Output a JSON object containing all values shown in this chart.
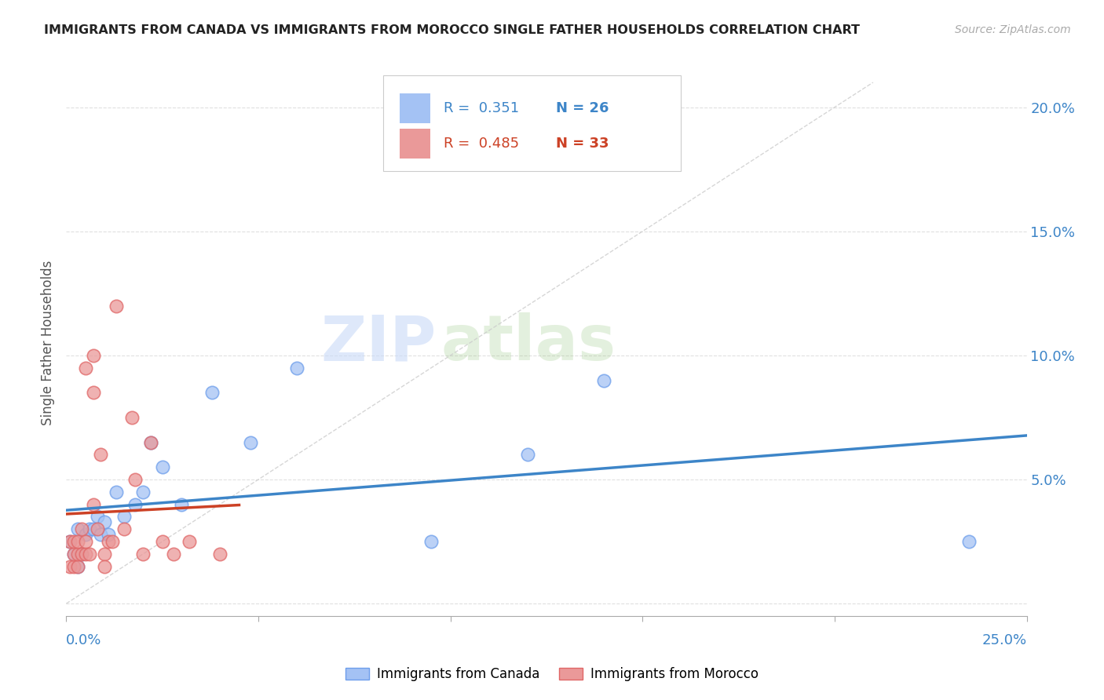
{
  "title": "IMMIGRANTS FROM CANADA VS IMMIGRANTS FROM MOROCCO SINGLE FATHER HOUSEHOLDS CORRELATION CHART",
  "source": "Source: ZipAtlas.com",
  "ylabel": "Single Father Households",
  "canada_R": 0.351,
  "canada_N": 26,
  "morocco_R": 0.485,
  "morocco_N": 33,
  "canada_color": "#a4c2f4",
  "morocco_color": "#ea9999",
  "canada_edge_color": "#6d9eeb",
  "morocco_edge_color": "#e06666",
  "canada_line_color": "#3d85c8",
  "morocco_line_color": "#cc4125",
  "diagonal_color": "#cccccc",
  "watermark_zip": "ZIP",
  "watermark_atlas": "atlas",
  "xlim": [
    0.0,
    0.25
  ],
  "ylim": [
    -0.005,
    0.215
  ],
  "yticks": [
    0.0,
    0.05,
    0.1,
    0.15,
    0.2
  ],
  "ytick_labels": [
    "",
    "5.0%",
    "10.0%",
    "15.0%",
    "20.0%"
  ],
  "xtick_labels": [
    "0.0%",
    "",
    "",
    "",
    "",
    "25.0%"
  ],
  "background_color": "#ffffff",
  "grid_color": "#e0e0e0",
  "canada_points_x": [
    0.001,
    0.002,
    0.003,
    0.003,
    0.004,
    0.005,
    0.006,
    0.007,
    0.008,
    0.009,
    0.01,
    0.011,
    0.013,
    0.015,
    0.018,
    0.02,
    0.022,
    0.025,
    0.03,
    0.038,
    0.048,
    0.06,
    0.095,
    0.12,
    0.14,
    0.235
  ],
  "canada_points_y": [
    0.025,
    0.02,
    0.015,
    0.03,
    0.02,
    0.028,
    0.03,
    0.03,
    0.035,
    0.028,
    0.033,
    0.028,
    0.045,
    0.035,
    0.04,
    0.045,
    0.065,
    0.055,
    0.04,
    0.085,
    0.065,
    0.095,
    0.025,
    0.06,
    0.09,
    0.025
  ],
  "morocco_points_x": [
    0.001,
    0.001,
    0.002,
    0.002,
    0.002,
    0.003,
    0.003,
    0.003,
    0.004,
    0.004,
    0.005,
    0.005,
    0.005,
    0.006,
    0.007,
    0.007,
    0.007,
    0.008,
    0.009,
    0.01,
    0.01,
    0.011,
    0.012,
    0.013,
    0.015,
    0.017,
    0.018,
    0.02,
    0.022,
    0.025,
    0.028,
    0.032,
    0.04
  ],
  "morocco_points_y": [
    0.015,
    0.025,
    0.015,
    0.02,
    0.025,
    0.015,
    0.02,
    0.025,
    0.02,
    0.03,
    0.02,
    0.025,
    0.095,
    0.02,
    0.04,
    0.085,
    0.1,
    0.03,
    0.06,
    0.02,
    0.015,
    0.025,
    0.025,
    0.12,
    0.03,
    0.075,
    0.05,
    0.02,
    0.065,
    0.025,
    0.02,
    0.025,
    0.02
  ]
}
